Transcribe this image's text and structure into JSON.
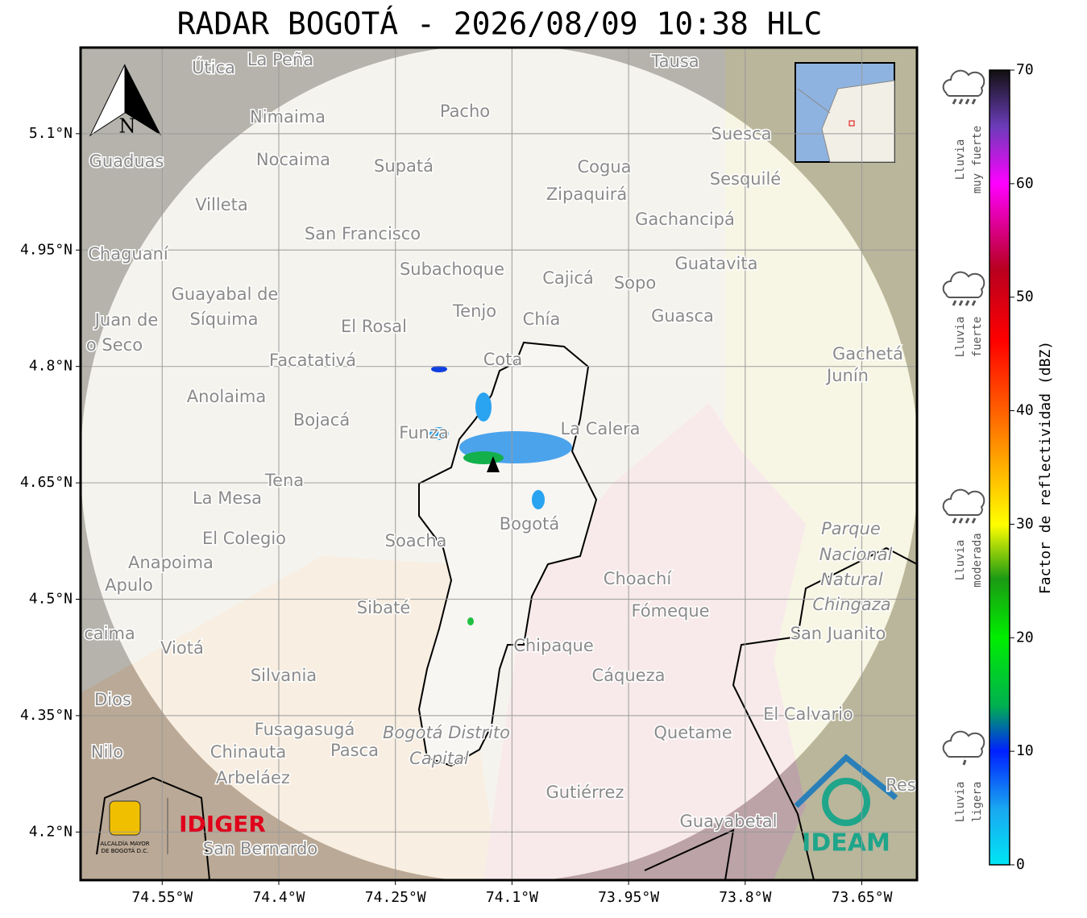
{
  "title": "RADAR BOGOTÁ - 2026/08/09 10:38 HLC",
  "map": {
    "lon_range": [
      -74.655,
      -73.579
    ],
    "lat_range": [
      4.138,
      5.211
    ],
    "lat_ticks": [
      {
        "value": 5.1,
        "label": "5.1°N"
      },
      {
        "value": 4.95,
        "label": "4.95°N"
      },
      {
        "value": 4.8,
        "label": "4.8°N"
      },
      {
        "value": 4.65,
        "label": "4.65°N"
      },
      {
        "value": 4.5,
        "label": "4.5°N"
      },
      {
        "value": 4.35,
        "label": "4.35°N"
      },
      {
        "value": 4.2,
        "label": "4.2°N"
      }
    ],
    "lon_ticks": [
      {
        "value": -74.55,
        "label": "74.55°W"
      },
      {
        "value": -74.4,
        "label": "74.4°W"
      },
      {
        "value": -74.25,
        "label": "74.25°W"
      },
      {
        "value": -74.1,
        "label": "74.1°W"
      },
      {
        "value": -73.95,
        "label": "73.95°W"
      },
      {
        "value": -73.8,
        "label": "73.8°W"
      },
      {
        "value": -73.65,
        "label": "73.65°W"
      }
    ],
    "north": "N",
    "places": [
      "Útica",
      "La Peña",
      "Tausa",
      "Pacho",
      "Nimaima",
      "Guaduas",
      "Nocaima",
      "Supatá",
      "Cogua",
      "Suesca",
      "Sesquilé",
      "Zipaquirá",
      "Villeta",
      "Gachancipá",
      "San Francisco",
      "Chaguaní",
      "Guatavita",
      "Subachoque",
      "Cajicá",
      "Sopo",
      "Guayabal de",
      "Síquima",
      "Juan de",
      "o Seco",
      "Tenjo",
      "Chía",
      "Guasca",
      "El Rosal",
      "Facatativá",
      "Cota",
      "Gachetá",
      "Junín",
      "Anolaima",
      "Bojacá",
      "Funza",
      "La Calera",
      "Tena",
      "La Mesa",
      "El Colegio",
      "Soacha",
      "Bogotá",
      "Parque",
      "Nacional",
      "Natural",
      "Chingaza",
      "Anapoima",
      "Apulo",
      "Choachí",
      "Sibaté",
      "Fómeque",
      "San Juanito",
      "caima",
      "Viotá",
      "Chipaque",
      "Silvania",
      "Cáqueza",
      "Dios",
      "El Calvario",
      "Fusagasugá",
      "Bogotá Distrito",
      "Capital",
      "Quetame",
      "Nilo",
      "Chinauta",
      "Pasca",
      "Arbeláez",
      "Gutiérrez",
      "Guayabetal",
      "San Bernardo",
      "Res"
    ]
  },
  "logos": {
    "alcaldia": [
      "ALCALDÍA MAYOR",
      "DE BOGOTÁ D.C."
    ],
    "idiger": "IDIGER",
    "ideam": "IDEAM"
  },
  "colorbar": {
    "label": "Factor de reflectividad (dBZ)",
    "range": [
      0,
      70
    ],
    "ticks": [
      0,
      10,
      20,
      30,
      40,
      50,
      60,
      70
    ]
  },
  "rain_levels": [
    [
      "Lluvia",
      "muy fuerte"
    ],
    [
      "Lluvia",
      "fuerte"
    ],
    [
      "Lluvia",
      "moderada"
    ],
    [
      "Lluvia",
      "ligera"
    ]
  ]
}
